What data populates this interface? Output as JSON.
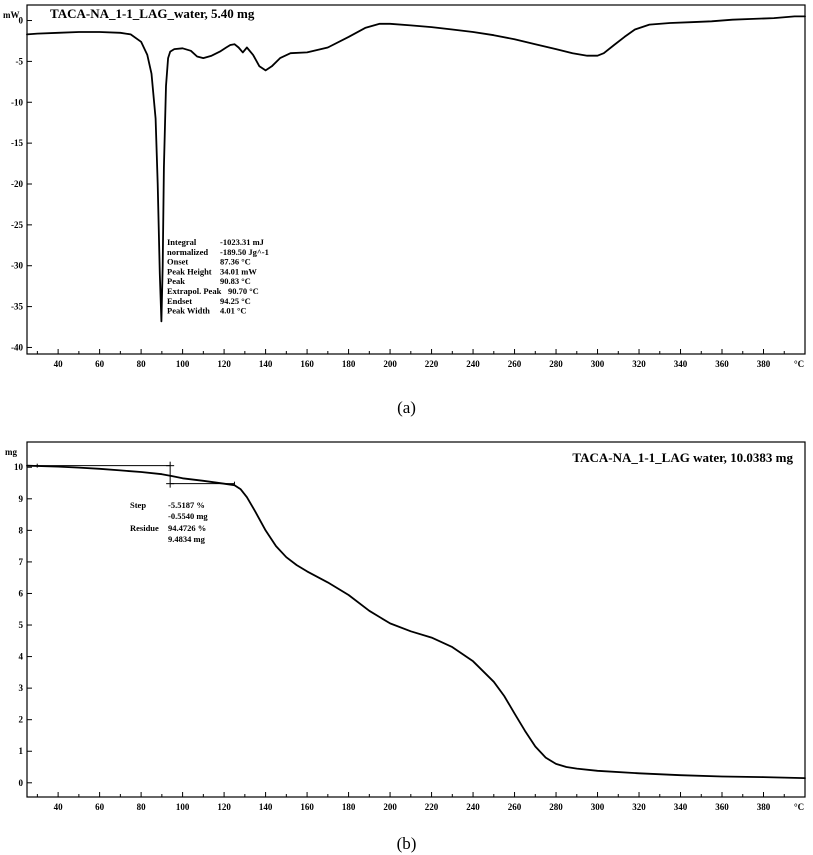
{
  "chart_data": [
    {
      "type": "line",
      "title": "TACA-NA_1-1_LAG_water,  5.40 mg",
      "ylabel": "mW",
      "xlabel": "°C",
      "xlim": [
        25,
        400
      ],
      "ylim": [
        -40.8,
        1.9
      ],
      "x_ticks": [
        40,
        60,
        80,
        100,
        120,
        140,
        160,
        180,
        200,
        220,
        240,
        260,
        280,
        300,
        320,
        340,
        360,
        380
      ],
      "y_ticks": [
        0,
        -5,
        -10,
        -15,
        -20,
        -25,
        -30,
        -35,
        -40
      ],
      "grid": false,
      "series": [
        {
          "x": [
            25,
            30,
            40,
            50,
            60,
            70,
            75,
            80,
            83,
            85,
            87,
            88,
            89,
            89.8,
            90.4,
            91,
            92,
            93,
            94,
            96,
            100,
            104,
            107,
            110,
            114,
            118,
            121,
            123,
            125,
            127,
            129,
            131,
            134,
            137,
            140,
            143,
            147,
            152,
            160,
            170,
            180,
            188,
            195,
            200,
            210,
            220,
            230,
            240,
            250,
            260,
            270,
            280,
            288,
            295,
            300,
            303,
            308,
            313,
            318,
            325,
            335,
            345,
            355,
            365,
            375,
            385,
            395,
            400
          ],
          "y": [
            -1.7,
            -1.6,
            -1.5,
            -1.4,
            -1.4,
            -1.5,
            -1.7,
            -2.6,
            -4.2,
            -6.5,
            -12,
            -20,
            -31,
            -36.8,
            -30,
            -18,
            -8,
            -4.6,
            -3.8,
            -3.5,
            -3.4,
            -3.7,
            -4.4,
            -4.6,
            -4.3,
            -3.8,
            -3.3,
            -3,
            -2.9,
            -3.3,
            -3.9,
            -3.3,
            -4.2,
            -5.6,
            -6.1,
            -5.6,
            -4.6,
            -4.0,
            -3.9,
            -3.3,
            -2.0,
            -0.9,
            -0.4,
            -0.4,
            -0.6,
            -0.8,
            -1.1,
            -1.4,
            -1.8,
            -2.3,
            -2.9,
            -3.5,
            -4.0,
            -4.3,
            -4.3,
            -4.0,
            -3.0,
            -2.0,
            -1.1,
            -0.5,
            -0.3,
            -0.2,
            -0.1,
            0.1,
            0.2,
            0.3,
            0.5,
            0.5
          ]
        }
      ],
      "annotation": [
        {
          "label": "Integral",
          "value": "-1023.31 mJ"
        },
        {
          "label": "  normalized",
          "value": "-189.50 Jg^-1"
        },
        {
          "label": "Onset",
          "value": "87.36 °C"
        },
        {
          "label": "Peak Height",
          "value": "34.01 mW"
        },
        {
          "label": "Peak",
          "value": "90.83 °C"
        },
        {
          "label": "Extrapol. Peak",
          "value": "90.70 °C"
        },
        {
          "label": "Endset",
          "value": "94.25 °C"
        },
        {
          "label": "Peak Width",
          "value": "4.01 °C"
        }
      ]
    },
    {
      "type": "line",
      "title": "TACA-NA_1-1_LAG water,  10.0383 mg",
      "ylabel": "mg",
      "xlabel": "°C",
      "xlim": [
        25,
        400
      ],
      "ylim": [
        -0.45,
        10.8
      ],
      "x_ticks": [
        40,
        60,
        80,
        100,
        120,
        140,
        160,
        180,
        200,
        220,
        240,
        260,
        280,
        300,
        320,
        340,
        360,
        380
      ],
      "y_ticks": [
        10,
        9,
        8,
        7,
        6,
        5,
        4,
        3,
        2,
        1,
        0
      ],
      "grid": false,
      "series": [
        {
          "x": [
            25,
            30,
            40,
            50,
            60,
            70,
            80,
            90,
            95,
            100,
            110,
            120,
            125,
            128,
            131,
            135,
            140,
            145,
            150,
            155,
            160,
            170,
            180,
            190,
            200,
            210,
            220,
            230,
            240,
            250,
            255,
            260,
            265,
            270,
            275,
            280,
            285,
            290,
            300,
            320,
            340,
            360,
            380,
            400
          ],
          "y": [
            10.05,
            10.04,
            10.02,
            9.99,
            9.95,
            9.9,
            9.85,
            9.78,
            9.72,
            9.65,
            9.57,
            9.48,
            9.43,
            9.3,
            9.05,
            8.6,
            8.0,
            7.5,
            7.15,
            6.9,
            6.7,
            6.35,
            5.95,
            5.45,
            5.05,
            4.8,
            4.6,
            4.3,
            3.85,
            3.2,
            2.75,
            2.2,
            1.65,
            1.15,
            0.8,
            0.6,
            0.5,
            0.45,
            0.38,
            0.3,
            0.24,
            0.2,
            0.18,
            0.15
          ]
        }
      ],
      "step_baselines": {
        "upper": 10.05,
        "lower": 9.48,
        "x_start": 28,
        "x_step": 94,
        "x_end": 125
      },
      "annotation": [
        {
          "label": "Step",
          "value": "-5.5187 %"
        },
        {
          "label": "",
          "value": "-0.5540 mg"
        },
        {
          "label": "Residue",
          "value": "94.4726 %"
        },
        {
          "label": "",
          "value": "9.4834 mg"
        }
      ]
    }
  ],
  "captions": [
    "(a)",
    "(b)"
  ]
}
